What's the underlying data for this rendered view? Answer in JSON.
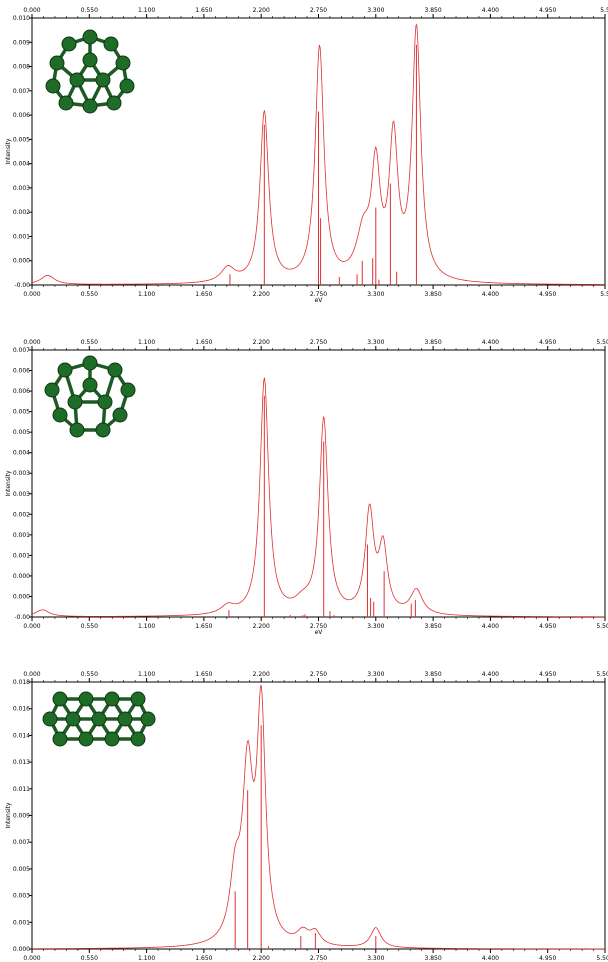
{
  "chart_data": [
    {
      "type": "line",
      "xlabel": "eV",
      "ylabel": "Intensity",
      "xlim": [
        0.0,
        5.5
      ],
      "ylim": [
        -0.0,
        0.01
      ],
      "x_ticks": [
        "0.000",
        "0.550",
        "1.100",
        "1.650",
        "2.200",
        "2.750",
        "3.300",
        "3.850",
        "4.400",
        "4.950",
        "5.5"
      ],
      "y_ticks": [
        "-0.00",
        "0.000",
        "0.001",
        "0.002",
        "0.003",
        "0.004",
        "0.005",
        "0.006",
        "0.007",
        "0.008",
        "0.009",
        "0.010"
      ],
      "grid": false,
      "legend": "none",
      "series_color": "#e03030",
      "molecule_icon": "green-carbon-cluster-icon",
      "baseline": 0.0,
      "peaks": [
        {
          "x": 0.15,
          "y": 0.00035,
          "w": 0.08
        },
        {
          "x": 1.88,
          "y": 0.00055,
          "w": 0.08
        },
        {
          "x": 2.23,
          "y": 0.0064,
          "w": 0.05
        },
        {
          "x": 2.76,
          "y": 0.0088,
          "w": 0.05
        },
        {
          "x": 3.18,
          "y": 0.00165,
          "w": 0.08
        },
        {
          "x": 3.3,
          "y": 0.004,
          "w": 0.05
        },
        {
          "x": 3.47,
          "y": 0.0052,
          "w": 0.05
        },
        {
          "x": 3.69,
          "y": 0.0094,
          "w": 0.05
        }
      ],
      "sticks": [
        {
          "x": 1.9,
          "y": 0.0004
        },
        {
          "x": 2.23,
          "y": 0.006
        },
        {
          "x": 2.75,
          "y": 0.0065
        },
        {
          "x": 2.77,
          "y": 0.0025
        },
        {
          "x": 2.95,
          "y": 0.0003
        },
        {
          "x": 3.12,
          "y": 0.0004
        },
        {
          "x": 3.17,
          "y": 0.0009
        },
        {
          "x": 3.27,
          "y": 0.001
        },
        {
          "x": 3.3,
          "y": 0.0029
        },
        {
          "x": 3.33,
          "y": 0.0002
        },
        {
          "x": 3.44,
          "y": 0.0038
        },
        {
          "x": 3.5,
          "y": 0.0005
        },
        {
          "x": 3.69,
          "y": 0.009
        }
      ]
    },
    {
      "type": "line",
      "xlabel": "eV",
      "ylabel": "Intensity",
      "xlim": [
        0.0,
        5.5
      ],
      "ylim": [
        -0.0,
        0.007
      ],
      "x_ticks": [
        "0.000",
        "0.550",
        "1.100",
        "1.650",
        "2.200",
        "2.750",
        "3.300",
        "3.850",
        "4.400",
        "4.950",
        "5.500"
      ],
      "y_ticks": [
        "-0.00",
        "0.000",
        "0.000",
        "0.001",
        "0.001",
        "0.002",
        "0.003",
        "0.003",
        "0.004",
        "0.005",
        "0.005",
        "0.006",
        "0.006",
        "0.007"
      ],
      "grid": false,
      "legend": "none",
      "series_color": "#e03030",
      "molecule_icon": "green-carbon-cluster-icon",
      "baseline": 0.0,
      "peaks": [
        {
          "x": 0.1,
          "y": 0.00018,
          "w": 0.08
        },
        {
          "x": 1.88,
          "y": 0.00022,
          "w": 0.08
        },
        {
          "x": 2.23,
          "y": 0.0062,
          "w": 0.05
        },
        {
          "x": 2.6,
          "y": 0.00028,
          "w": 0.1
        },
        {
          "x": 2.8,
          "y": 0.0051,
          "w": 0.05
        },
        {
          "x": 3.24,
          "y": 0.00265,
          "w": 0.05
        },
        {
          "x": 3.37,
          "y": 0.0017,
          "w": 0.05
        },
        {
          "x": 3.69,
          "y": 0.00065,
          "w": 0.07
        }
      ],
      "sticks": [
        {
          "x": 1.89,
          "y": 0.00018
        },
        {
          "x": 2.23,
          "y": 0.0058
        },
        {
          "x": 2.48,
          "y": 5e-05
        },
        {
          "x": 2.6,
          "y": 5e-05
        },
        {
          "x": 2.62,
          "y": 7e-05
        },
        {
          "x": 2.8,
          "y": 0.0046
        },
        {
          "x": 2.86,
          "y": 0.00015
        },
        {
          "x": 2.9,
          "y": 5e-05
        },
        {
          "x": 3.22,
          "y": 0.0019
        },
        {
          "x": 3.25,
          "y": 0.0005
        },
        {
          "x": 3.28,
          "y": 0.0004
        },
        {
          "x": 3.38,
          "y": 0.0012
        },
        {
          "x": 3.64,
          "y": 0.00035
        },
        {
          "x": 3.68,
          "y": 0.00045
        }
      ]
    },
    {
      "type": "line",
      "xlabel": "eV",
      "ylabel": "Intensity",
      "xlim": [
        0.0,
        5.5
      ],
      "ylim": [
        0.0,
        0.0185
      ],
      "x_ticks": [
        "0.000",
        "0.550",
        "1.100",
        "1.650",
        "2.200",
        "2.750",
        "3.300",
        "3.850",
        "4.400",
        "4.950",
        "5.500"
      ],
      "y_ticks": [
        "0.000",
        "0.001",
        "0.003",
        "0.005",
        "0.007",
        "0.009",
        "0.011",
        "0.013",
        "0.014",
        "0.016",
        "0.018"
      ],
      "grid": false,
      "legend": "none",
      "series_color": "#e03030",
      "molecule_icon": "green-carbon-cluster-icon",
      "baseline": 0.0,
      "peaks": [
        {
          "x": 1.95,
          "y": 0.0042,
          "w": 0.06
        },
        {
          "x": 2.07,
          "y": 0.0115,
          "w": 0.06
        },
        {
          "x": 2.2,
          "y": 0.016,
          "w": 0.05
        },
        {
          "x": 2.6,
          "y": 0.0009,
          "w": 0.07
        },
        {
          "x": 2.72,
          "y": 0.0009,
          "w": 0.06
        },
        {
          "x": 3.3,
          "y": 0.0014,
          "w": 0.06
        }
      ],
      "sticks": [
        {
          "x": 1.95,
          "y": 0.004
        },
        {
          "x": 2.07,
          "y": 0.011
        },
        {
          "x": 2.2,
          "y": 0.0155
        },
        {
          "x": 2.27,
          "y": 0.0002
        },
        {
          "x": 2.58,
          "y": 0.0009
        },
        {
          "x": 2.72,
          "y": 0.0011
        },
        {
          "x": 3.3,
          "y": 0.0009
        }
      ]
    }
  ]
}
